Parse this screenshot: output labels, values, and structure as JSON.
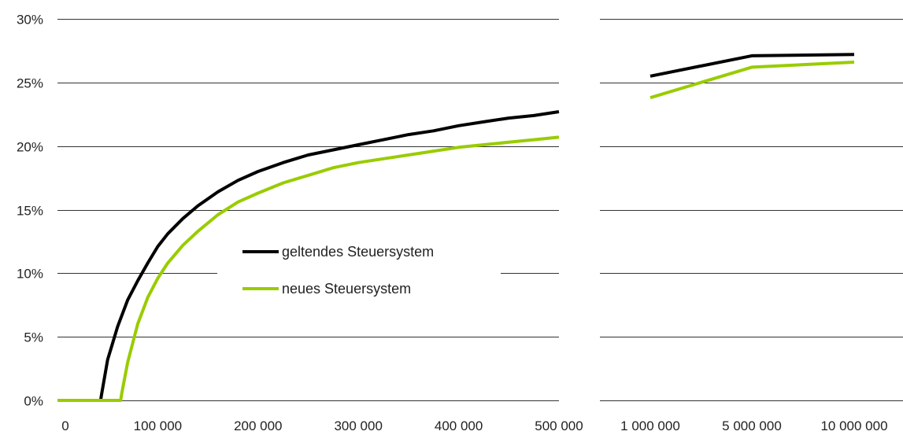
{
  "chart_data": {
    "type": "line",
    "title": "",
    "xlabel": "",
    "ylabel": "",
    "grid": true,
    "legend_position": "center",
    "y_axis": {
      "ylim": [
        0,
        30
      ],
      "ticks": [
        0,
        5,
        10,
        15,
        20,
        25,
        30
      ],
      "tick_labels": [
        "0%",
        "5%",
        "10%",
        "15%",
        "20%",
        "25%",
        "30%"
      ]
    },
    "panels": [
      {
        "name": "left",
        "x_scale": "linear",
        "xlim": [
          0,
          500000
        ],
        "x_ticks": [
          0,
          100000,
          200000,
          300000,
          400000,
          500000
        ],
        "x_tick_labels": [
          "0",
          "100 000",
          "200 000",
          "300 000",
          "400 000",
          "500 000"
        ],
        "series": [
          {
            "name": "geltendes Steuersystem",
            "color": "#000000",
            "points": [
              [
                0,
                0
              ],
              [
                43000,
                0
              ],
              [
                44000,
                0.5
              ],
              [
                50000,
                3.2
              ],
              [
                60000,
                5.8
              ],
              [
                70000,
                7.9
              ],
              [
                80000,
                9.4
              ],
              [
                90000,
                10.8
              ],
              [
                100000,
                12.1
              ],
              [
                110000,
                13.1
              ],
              [
                125000,
                14.3
              ],
              [
                140000,
                15.3
              ],
              [
                160000,
                16.4
              ],
              [
                180000,
                17.3
              ],
              [
                200000,
                18.0
              ],
              [
                225000,
                18.7
              ],
              [
                250000,
                19.3
              ],
              [
                275000,
                19.7
              ],
              [
                300000,
                20.1
              ],
              [
                325000,
                20.5
              ],
              [
                350000,
                20.9
              ],
              [
                375000,
                21.2
              ],
              [
                400000,
                21.6
              ],
              [
                425000,
                21.9
              ],
              [
                450000,
                22.2
              ],
              [
                475000,
                22.4
              ],
              [
                500000,
                22.7
              ]
            ]
          },
          {
            "name": "neues Steuersystem",
            "color": "#99cc00",
            "points": [
              [
                0,
                0
              ],
              [
                63000,
                0
              ],
              [
                64000,
                0.5
              ],
              [
                70000,
                3.0
              ],
              [
                80000,
                6.0
              ],
              [
                90000,
                8.1
              ],
              [
                100000,
                9.6
              ],
              [
                110000,
                10.8
              ],
              [
                125000,
                12.2
              ],
              [
                140000,
                13.3
              ],
              [
                160000,
                14.6
              ],
              [
                180000,
                15.6
              ],
              [
                200000,
                16.3
              ],
              [
                225000,
                17.1
              ],
              [
                250000,
                17.7
              ],
              [
                275000,
                18.3
              ],
              [
                300000,
                18.7
              ],
              [
                325000,
                19.0
              ],
              [
                350000,
                19.3
              ],
              [
                375000,
                19.6
              ],
              [
                400000,
                19.9
              ],
              [
                425000,
                20.1
              ],
              [
                450000,
                20.3
              ],
              [
                475000,
                20.5
              ],
              [
                500000,
                20.7
              ]
            ]
          }
        ]
      },
      {
        "name": "right",
        "x_scale": "categorical",
        "categories": [
          "1 000 000",
          "5 000 000",
          "10 000 000"
        ],
        "series": [
          {
            "name": "geltendes Steuersystem",
            "color": "#000000",
            "values": [
              25.5,
              27.1,
              27.2
            ]
          },
          {
            "name": "neues Steuersystem",
            "color": "#99cc00",
            "values": [
              23.8,
              26.2,
              26.6
            ]
          }
        ]
      }
    ],
    "legend": [
      {
        "label": "geltendes Steuersystem",
        "color": "#000000"
      },
      {
        "label": "neues Steuersystem",
        "color": "#99cc00"
      }
    ]
  }
}
